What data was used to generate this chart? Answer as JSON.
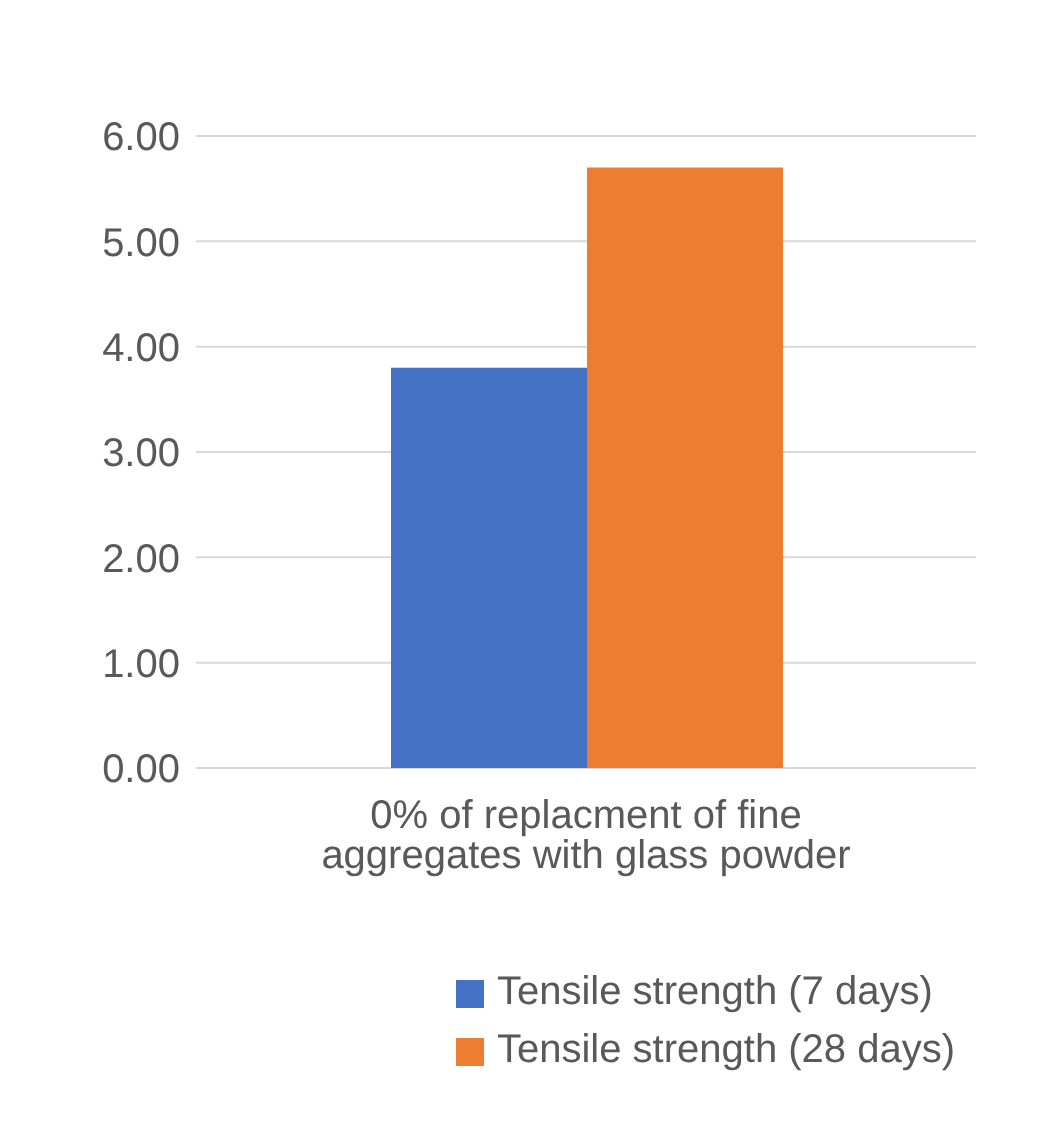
{
  "chart_data": {
    "type": "bar",
    "categories": [
      "0% of replacment of fine aggregates with glass powder"
    ],
    "series": [
      {
        "name": "Tensile strength (7 days)",
        "color": "#4472c4",
        "values": [
          3.8
        ]
      },
      {
        "name": "Tensile strength (28 days)",
        "color": "#ed7d31",
        "values": [
          5.7
        ]
      }
    ],
    "ylim": [
      0,
      6
    ],
    "yticks": [
      {
        "value": 0,
        "label": "0.00"
      },
      {
        "value": 1,
        "label": "1.00"
      },
      {
        "value": 2,
        "label": "2.00"
      },
      {
        "value": 3,
        "label": "3.00"
      },
      {
        "value": 4,
        "label": "4.00"
      },
      {
        "value": 5,
        "label": "5.00"
      },
      {
        "value": 6,
        "label": "6.00"
      }
    ],
    "grid": "y",
    "legend": "bottom"
  }
}
